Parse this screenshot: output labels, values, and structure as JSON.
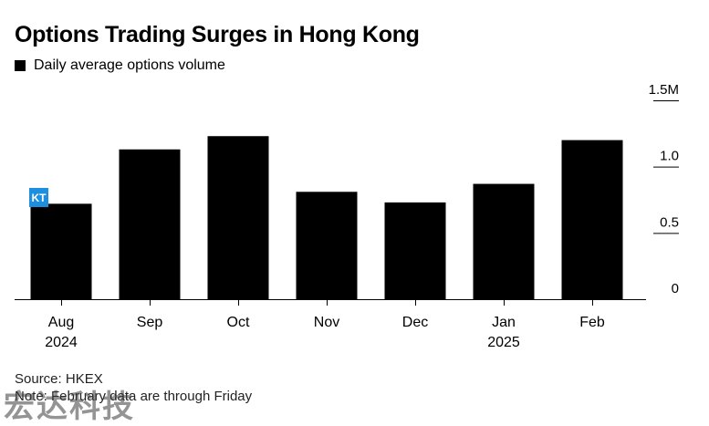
{
  "chart_data": {
    "type": "bar",
    "title": "Options Trading Surges in Hong Kong",
    "categories": [
      "Aug",
      "Sep",
      "Oct",
      "Nov",
      "Dec",
      "Jan",
      "Feb"
    ],
    "category_sublabels": [
      "2024",
      "",
      "",
      "",
      "",
      "2025",
      ""
    ],
    "series": [
      {
        "name": "Daily average options volume",
        "values": [
          0.72,
          1.13,
          1.23,
          0.81,
          0.73,
          0.87,
          1.2
        ]
      }
    ],
    "ylim": [
      0,
      1.5
    ],
    "y_ticks": [
      {
        "value": 0,
        "label": "0"
      },
      {
        "value": 0.5,
        "label": "0.5"
      },
      {
        "value": 1.0,
        "label": "1.0"
      },
      {
        "value": 1.5,
        "label": "1.5M"
      }
    ],
    "bar_color": "#000000",
    "y_axis_position": "right",
    "grid": false,
    "legend_position": "top-left"
  },
  "footer": {
    "source": "Source: HKEX",
    "note": "Note: February data are through Friday"
  },
  "logo_text": "KT",
  "watermark_text": "宏达科技"
}
